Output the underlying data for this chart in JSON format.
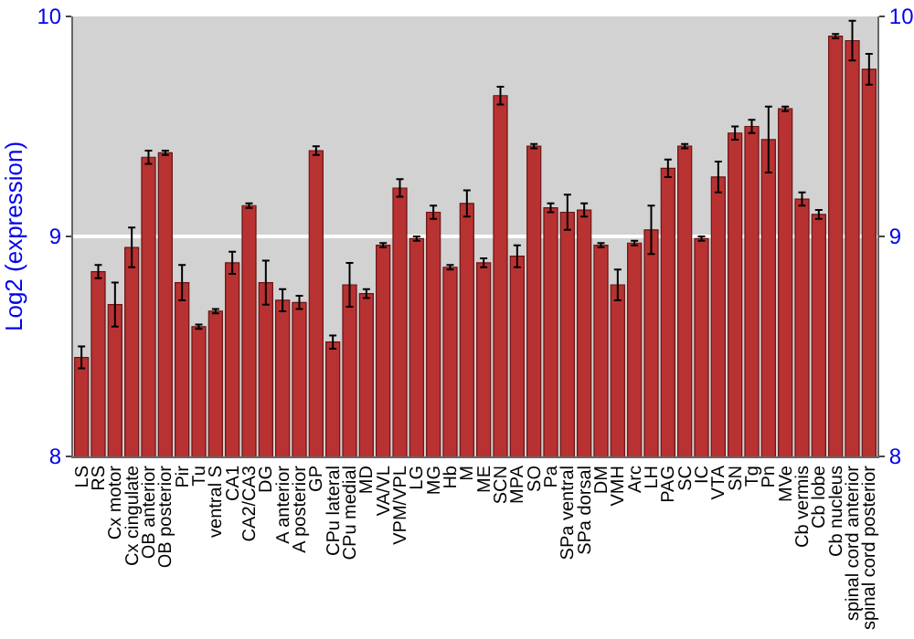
{
  "chart_data": {
    "type": "bar",
    "ylabel": "Log2 (expression)",
    "categories": [
      "LS",
      "RS",
      "Cx motor",
      "Cx cingulate",
      "OB anterior",
      "OB posterior",
      "Pir",
      "Tu",
      "ventral S",
      "CA1",
      "CA2/CA3",
      "DG",
      "A anterior",
      "A posterior",
      "GP",
      "CPu lateral",
      "CPu medial",
      "MD",
      "VA/VL",
      "VPM/VPL",
      "LG",
      "MG",
      "Hb",
      "M",
      "ME",
      "SCN",
      "MPA",
      "SO",
      "Pa",
      "SPa ventral",
      "SPa dorsal",
      "DM",
      "VMH",
      "Arc",
      "LH",
      "PAG",
      "SC",
      "IC",
      "VTA",
      "SN",
      "Tg",
      "Pn",
      "MVe",
      "Cb vermis",
      "Cb lobe",
      "Cb nucleus",
      "spinal cord anterior",
      "spinal cord posterior"
    ],
    "values": [
      8.45,
      8.84,
      8.69,
      8.95,
      9.36,
      9.38,
      8.79,
      8.59,
      8.66,
      8.88,
      9.14,
      8.79,
      8.71,
      8.7,
      9.39,
      8.52,
      8.78,
      8.74,
      8.96,
      9.22,
      8.99,
      9.11,
      8.86,
      9.15,
      8.88,
      9.64,
      8.91,
      9.41,
      9.13,
      9.11,
      9.12,
      8.96,
      8.78,
      8.97,
      9.03,
      9.31,
      9.41,
      8.99,
      9.27,
      9.47,
      9.5,
      9.44,
      9.58,
      9.17,
      9.1,
      9.91,
      9.89,
      9.76
    ],
    "errors": [
      0.05,
      0.03,
      0.1,
      0.09,
      0.03,
      0.01,
      0.08,
      0.01,
      0.01,
      0.05,
      0.01,
      0.1,
      0.05,
      0.03,
      0.02,
      0.03,
      0.1,
      0.02,
      0.01,
      0.04,
      0.01,
      0.03,
      0.01,
      0.06,
      0.02,
      0.04,
      0.05,
      0.01,
      0.02,
      0.08,
      0.03,
      0.01,
      0.07,
      0.01,
      0.11,
      0.04,
      0.01,
      0.01,
      0.07,
      0.03,
      0.03,
      0.15,
      0.01,
      0.03,
      0.02,
      0.01,
      0.09,
      0.07
    ],
    "color": "#b83232",
    "ylim": [
      8,
      10
    ],
    "yticks": [
      8,
      9,
      10
    ],
    "y2lim": [
      8,
      10
    ],
    "y2ticks": [
      8,
      9,
      10
    ],
    "grid": true
  }
}
